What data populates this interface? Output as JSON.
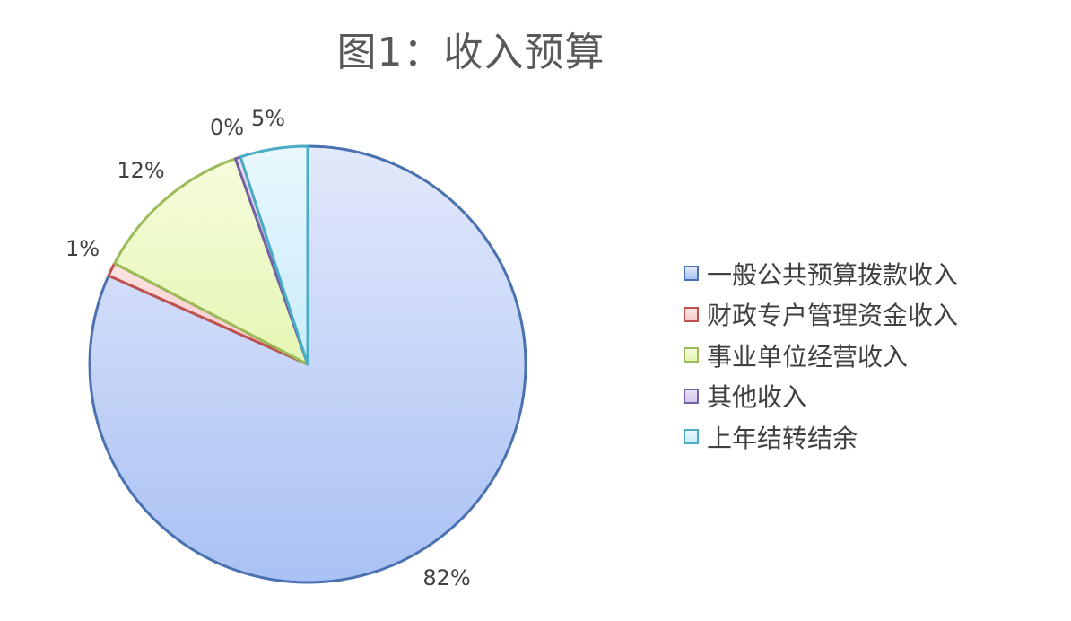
{
  "chart_data": {
    "type": "pie",
    "title": "图1：收入预算",
    "series": [
      {
        "name": "一般公共预算拨款收入",
        "value": 82,
        "label": "82%",
        "fill_top": "#e3e9fb",
        "fill_bottom": "#a9c1f4",
        "stroke": "#4a72b0"
      },
      {
        "name": "财政专户管理资金收入",
        "value": 1,
        "label": "1%",
        "fill_top": "#fbe3e3",
        "fill_bottom": "#f6c9c9",
        "stroke": "#c0504d"
      },
      {
        "name": "事业单位经营收入",
        "value": 12,
        "label": "12%",
        "fill_top": "#f6fcdc",
        "fill_bottom": "#e4f6b3",
        "stroke": "#9bbb59"
      },
      {
        "name": "其他收入",
        "value": 0.4,
        "label": "0%",
        "fill_top": "#e8e0f3",
        "fill_bottom": "#d3c4ea",
        "stroke": "#7360a6"
      },
      {
        "name": "上年结转结余",
        "value": 5,
        "label": "5%",
        "fill_top": "#e9f7fd",
        "fill_bottom": "#c9ecfa",
        "stroke": "#4bacc6"
      }
    ],
    "start": "12 o'clock",
    "direction": "clockwise",
    "legend_position": "right"
  }
}
